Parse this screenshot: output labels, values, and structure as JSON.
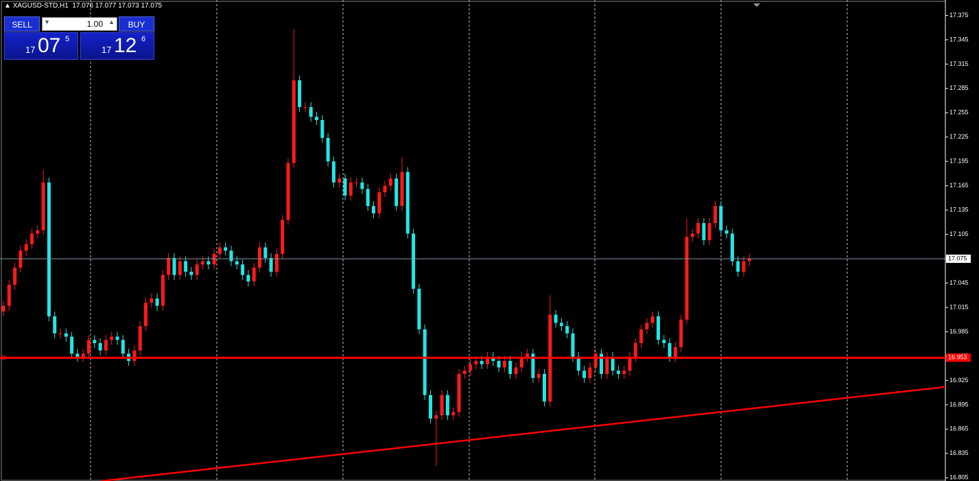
{
  "chart_data": {
    "type": "candlestick",
    "symbol": "XAGUSD-STD,H1",
    "header_ohlc": [
      17.076,
      17.077,
      17.073,
      17.075
    ],
    "trade_panel": {
      "sell": "SELL",
      "buy": "BUY",
      "lot": "1.00",
      "bid": [
        "17",
        "07",
        "5"
      ],
      "ask": [
        "17",
        "12",
        "6"
      ]
    },
    "ylim": [
      16.801,
      17.394
    ],
    "yticks": [
      17.375,
      17.345,
      17.315,
      17.285,
      17.255,
      17.225,
      17.195,
      17.165,
      17.135,
      17.105,
      17.075,
      17.045,
      17.015,
      16.985,
      16.955,
      16.925,
      16.895,
      16.865,
      16.835,
      16.805
    ],
    "up_color": "#ff1a1a",
    "down_color": "#22e6e6",
    "current_price": 17.075,
    "hline": 16.953,
    "hline_color": "#ff0000",
    "trendline": [
      16.801,
      16.917
    ],
    "open": [
      17.01,
      17.017,
      17.043,
      17.064,
      17.085,
      17.093,
      17.106,
      17.11,
      17.169,
      17.004,
      16.983,
      16.983,
      16.979,
      16.958,
      16.954,
      16.958,
      16.975,
      16.971,
      16.962,
      16.975,
      16.979,
      16.975,
      16.958,
      16.949,
      16.962,
      16.992,
      17.021,
      17.026,
      17.017,
      17.055,
      17.076,
      17.055,
      17.072,
      17.059,
      17.055,
      17.068,
      17.072,
      17.068,
      17.081,
      17.089,
      17.085,
      17.072,
      17.068,
      17.055,
      17.047,
      17.064,
      17.089,
      17.076,
      17.059,
      17.081,
      17.123,
      17.193,
      17.295,
      17.262,
      17.262,
      17.25,
      17.246,
      17.224,
      17.195,
      17.169,
      17.174,
      17.153,
      17.169,
      17.169,
      17.161,
      17.14,
      17.131,
      17.157,
      17.165,
      17.174,
      17.14,
      17.182,
      17.106,
      17.038,
      16.988,
      16.907,
      16.878,
      16.882,
      16.907,
      16.882,
      16.886,
      16.933,
      16.937,
      16.945,
      16.949,
      16.945,
      16.954,
      16.949,
      16.941,
      16.949,
      16.933,
      16.941,
      16.954,
      16.958,
      16.928,
      16.933,
      16.899,
      17.006,
      16.996,
      16.992,
      16.983,
      16.954,
      16.937,
      16.928,
      16.941,
      16.958,
      16.933,
      16.954,
      16.937,
      16.933,
      16.937,
      16.954,
      16.971,
      16.988,
      16.996,
      17.004,
      16.975,
      16.971,
      16.954,
      16.966,
      17.0,
      17.102,
      17.106,
      17.119,
      17.098,
      17.119,
      17.14,
      17.11,
      17.106,
      17.072,
      17.059,
      17.072
    ],
    "high": [
      17.023,
      17.049,
      17.07,
      17.091,
      17.099,
      17.112,
      17.116,
      17.185,
      17.175,
      17.01,
      16.989,
      16.989,
      16.985,
      16.964,
      16.964,
      16.981,
      16.981,
      16.977,
      16.981,
      16.985,
      16.985,
      16.981,
      16.964,
      16.968,
      16.998,
      17.027,
      17.032,
      17.032,
      17.061,
      17.082,
      17.082,
      17.078,
      17.078,
      17.065,
      17.074,
      17.078,
      17.078,
      17.087,
      17.095,
      17.095,
      17.091,
      17.078,
      17.074,
      17.061,
      17.07,
      17.095,
      17.095,
      17.082,
      17.087,
      17.129,
      17.199,
      17.358,
      17.301,
      17.268,
      17.268,
      17.256,
      17.252,
      17.23,
      17.201,
      17.18,
      17.18,
      17.175,
      17.175,
      17.175,
      17.167,
      17.146,
      17.163,
      17.171,
      17.18,
      17.18,
      17.2,
      17.188,
      17.112,
      17.044,
      16.994,
      16.913,
      16.888,
      16.913,
      16.913,
      16.892,
      16.939,
      16.943,
      16.951,
      16.955,
      16.955,
      16.96,
      16.96,
      16.955,
      16.955,
      16.955,
      16.947,
      16.96,
      16.964,
      16.964,
      16.939,
      16.939,
      17.03,
      17.012,
      17.002,
      16.998,
      16.989,
      16.96,
      16.943,
      16.947,
      16.964,
      16.964,
      16.96,
      16.96,
      16.943,
      16.943,
      16.96,
      16.977,
      16.994,
      17.002,
      17.01,
      17.01,
      16.981,
      16.977,
      16.972,
      17.006,
      17.125,
      17.112,
      17.125,
      17.125,
      17.125,
      17.146,
      17.146,
      17.116,
      17.112,
      17.078,
      17.078,
      17.081
    ],
    "low": [
      17.004,
      17.011,
      17.037,
      17.058,
      17.079,
      17.087,
      17.1,
      17.104,
      16.998,
      16.977,
      16.977,
      16.973,
      16.952,
      16.948,
      16.948,
      16.952,
      16.965,
      16.956,
      16.956,
      16.969,
      16.969,
      16.952,
      16.943,
      16.943,
      16.956,
      16.986,
      17.015,
      17.011,
      17.011,
      17.049,
      17.049,
      17.049,
      17.053,
      17.049,
      17.049,
      17.062,
      17.062,
      17.062,
      17.075,
      17.079,
      17.066,
      17.062,
      17.049,
      17.041,
      17.041,
      17.058,
      17.07,
      17.053,
      17.053,
      17.075,
      17.117,
      17.187,
      17.256,
      17.256,
      17.244,
      17.24,
      17.218,
      17.189,
      17.163,
      17.163,
      17.147,
      17.147,
      17.163,
      17.155,
      17.134,
      17.125,
      17.125,
      17.151,
      17.159,
      17.134,
      17.134,
      17.1,
      17.032,
      16.982,
      16.901,
      16.872,
      16.82,
      16.876,
      16.876,
      16.876,
      16.88,
      16.927,
      16.931,
      16.939,
      16.939,
      16.939,
      16.943,
      16.935,
      16.935,
      16.927,
      16.927,
      16.935,
      16.948,
      16.922,
      16.922,
      16.893,
      16.893,
      16.99,
      16.986,
      16.977,
      16.948,
      16.931,
      16.922,
      16.922,
      16.935,
      16.927,
      16.927,
      16.931,
      16.927,
      16.927,
      16.931,
      16.948,
      16.965,
      16.982,
      16.99,
      16.969,
      16.965,
      16.948,
      16.948,
      16.96,
      16.994,
      17.096,
      17.1,
      17.092,
      17.092,
      17.113,
      17.104,
      17.1,
      17.066,
      17.053,
      17.053,
      17.066
    ],
    "close": [
      17.017,
      17.043,
      17.064,
      17.085,
      17.093,
      17.106,
      17.11,
      17.169,
      17.004,
      16.983,
      16.983,
      16.979,
      16.958,
      16.954,
      16.958,
      16.975,
      16.971,
      16.962,
      16.975,
      16.979,
      16.975,
      16.958,
      16.949,
      16.962,
      16.992,
      17.021,
      17.026,
      17.017,
      17.055,
      17.076,
      17.055,
      17.072,
      17.059,
      17.055,
      17.068,
      17.072,
      17.068,
      17.081,
      17.089,
      17.085,
      17.072,
      17.068,
      17.055,
      17.047,
      17.064,
      17.089,
      17.076,
      17.059,
      17.081,
      17.123,
      17.193,
      17.295,
      17.262,
      17.262,
      17.25,
      17.246,
      17.224,
      17.195,
      17.169,
      17.174,
      17.153,
      17.169,
      17.169,
      17.161,
      17.14,
      17.131,
      17.157,
      17.165,
      17.174,
      17.14,
      17.182,
      17.106,
      17.038,
      16.988,
      16.907,
      16.878,
      16.882,
      16.907,
      16.882,
      16.886,
      16.933,
      16.937,
      16.945,
      16.949,
      16.945,
      16.954,
      16.949,
      16.941,
      16.949,
      16.933,
      16.941,
      16.954,
      16.958,
      16.928,
      16.933,
      16.899,
      17.006,
      16.996,
      16.992,
      16.983,
      16.954,
      16.937,
      16.928,
      16.941,
      16.958,
      16.933,
      16.954,
      16.937,
      16.933,
      16.937,
      16.954,
      16.971,
      16.988,
      16.996,
      17.004,
      16.975,
      16.971,
      16.954,
      16.966,
      17.0,
      17.102,
      17.106,
      17.119,
      17.098,
      17.119,
      17.14,
      17.11,
      17.106,
      17.072,
      17.059,
      17.072,
      17.075
    ]
  }
}
